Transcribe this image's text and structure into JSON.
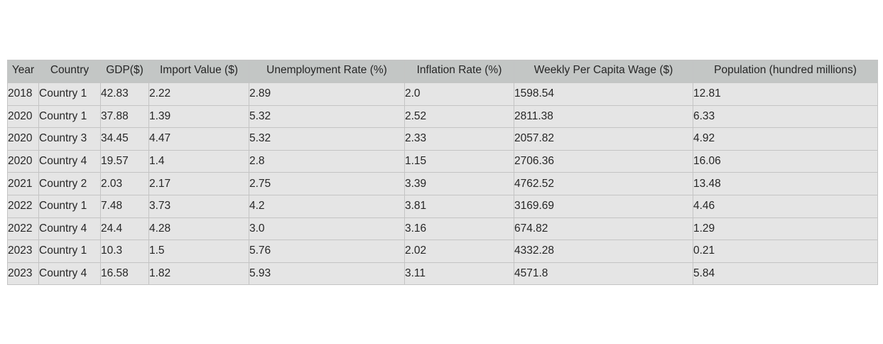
{
  "chart_data": {
    "type": "table",
    "columns": [
      "Year",
      "Country",
      "GDP($)",
      "Import Value ($)",
      "Unemployment Rate (%)",
      "Inflation Rate (%)",
      "Weekly Per Capita Wage ($)",
      "Population (hundred millions)"
    ],
    "rows": [
      [
        "2018",
        "Country 1",
        "42.83",
        "2.22",
        "2.89",
        "2.0",
        "1598.54",
        "12.81"
      ],
      [
        "2020",
        "Country 1",
        "37.88",
        "1.39",
        "5.32",
        "2.52",
        "2811.38",
        "6.33"
      ],
      [
        "2020",
        "Country 3",
        "34.45",
        "4.47",
        "5.32",
        "2.33",
        "2057.82",
        "4.92"
      ],
      [
        "2020",
        "Country 4",
        "19.57",
        "1.4",
        "2.8",
        "1.15",
        "2706.36",
        "16.06"
      ],
      [
        "2021",
        "Country 2",
        "2.03",
        "2.17",
        "2.75",
        "3.39",
        "4762.52",
        "13.48"
      ],
      [
        "2022",
        "Country 1",
        "7.48",
        "3.73",
        "4.2",
        "3.81",
        "3169.69",
        "4.46"
      ],
      [
        "2022",
        "Country 4",
        "24.4",
        "4.28",
        "3.0",
        "3.16",
        "674.82",
        "1.29"
      ],
      [
        "2023",
        "Country 1",
        "10.3",
        "1.5",
        "5.76",
        "2.02",
        "4332.28",
        "0.21"
      ],
      [
        "2023",
        "Country 4",
        "16.58",
        "1.82",
        "5.93",
        "3.11",
        "4571.8",
        "5.84"
      ]
    ],
    "header_color": "#c3c6c5",
    "cell_color": "#e5e5e5",
    "border_color": "#c4c4c4"
  }
}
